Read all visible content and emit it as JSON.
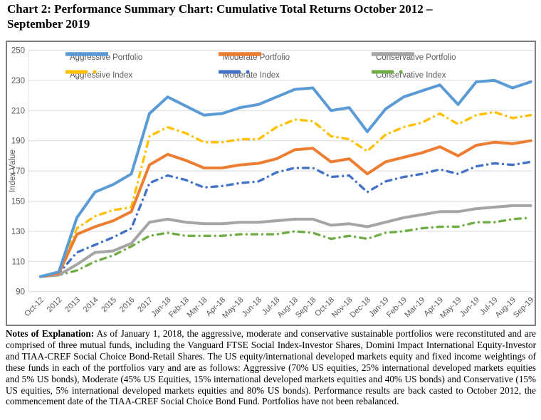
{
  "title": {
    "line1": "Chart 2:  Performance Summary Chart:  Cumulative Total Returns October 2012 –",
    "line2": "September 2019"
  },
  "chart_data": {
    "type": "line",
    "ylabel": "Index Value",
    "ylim": [
      90,
      250
    ],
    "ytick_step": 20,
    "yticks": [
      90,
      110,
      130,
      150,
      170,
      190,
      210,
      230,
      250
    ],
    "grid": "horizontal",
    "legend_position": "top-inside, two rows of three",
    "categories": [
      "Oct-12",
      "2012",
      "2013",
      "2014",
      "2015",
      "2016",
      "2017",
      "Jan-18",
      "Feb-18",
      "Mar-18",
      "Apr-18",
      "May-18",
      "Jun-18",
      "Jul-18",
      "Aug-18",
      "Sep-18",
      "Oct-18",
      "Nov-18",
      "Dec-18",
      "Jan-19",
      "Feb-19",
      "Mar-19",
      "Apr-19",
      "May-19",
      "Jun-19",
      "Jul-19",
      "Aug-19",
      "Sep-19"
    ],
    "series": [
      {
        "name": "Aggressive Portfolio",
        "color": "#5B9BD5",
        "line_style": "solid",
        "values": [
          100,
          103,
          139,
          156,
          161,
          168,
          208,
          219,
          213,
          207,
          208,
          212,
          214,
          219,
          224,
          225,
          210,
          212,
          196,
          211,
          219,
          223,
          227,
          214,
          229,
          230,
          225,
          229
        ]
      },
      {
        "name": "Moderate Portfolio",
        "color": "#ED7D31",
        "line_style": "solid",
        "values": [
          100,
          102,
          128,
          133,
          137,
          143,
          174,
          181,
          177,
          172,
          172,
          174,
          175,
          178,
          184,
          185,
          176,
          178,
          168,
          176,
          179,
          182,
          186,
          180,
          187,
          189,
          188,
          190
        ]
      },
      {
        "name": "Conservative Portfolio",
        "color": "#A5A5A5",
        "line_style": "solid",
        "values": [
          100,
          101,
          108,
          116,
          117,
          122,
          136,
          138,
          136,
          135,
          135,
          136,
          136,
          137,
          138,
          138,
          134,
          135,
          133,
          136,
          139,
          141,
          143,
          143,
          145,
          146,
          147,
          147
        ]
      },
      {
        "name": "Aggressive Index",
        "color": "#FFC000",
        "line_style": "dash-dot",
        "values": [
          100,
          102,
          132,
          140,
          144,
          146,
          193,
          199,
          195,
          189,
          189,
          191,
          191,
          199,
          204,
          203,
          193,
          191,
          183,
          194,
          199,
          202,
          208,
          201,
          207,
          209,
          205,
          207
        ]
      },
      {
        "name": "Moderate Index",
        "color": "#4472C4",
        "line_style": "dash-dot",
        "values": [
          100,
          102,
          116,
          121,
          126,
          132,
          162,
          167,
          164,
          159,
          160,
          162,
          163,
          169,
          172,
          172,
          166,
          167,
          156,
          163,
          166,
          168,
          171,
          168,
          173,
          175,
          174,
          176
        ]
      },
      {
        "name": "Conservative Index",
        "color": "#70AD47",
        "line_style": "dash-dot",
        "values": [
          100,
          101,
          104,
          110,
          114,
          120,
          127,
          129,
          127,
          127,
          127,
          128,
          128,
          128,
          130,
          129,
          125,
          127,
          125,
          129,
          130,
          132,
          133,
          133,
          136,
          136,
          138,
          139
        ]
      }
    ],
    "colors": {
      "gridline": "#D9D9D9",
      "axis_text": "#595959",
      "chart_border": "#7F7F7F"
    }
  },
  "notes": {
    "lead": "Notes of Explanation:",
    "body": "  As of January 1, 2018, the aggressive, moderate and conservative sustainable portfolios were reconstituted and are comprised of three mutual funds, including the Vanguard FTSE Social Index-Investor Shares, Domini Impact International Equity-Investor and TIAA-CREF Social Choice Bond-Retail Shares. The US equity/international developed markets equity and fixed income weightings of these funds in each of the portfolios vary and are as follows:  Aggressive (70% US equities, 25% international developed markets equities and 5% US bonds), Moderate (45% US Equities, 15% international developed markets equities and 40% US bonds) and Conservative (15% US equities, 5% international developed markets equities and 80% US bonds).  Performance results are back casted to October 2012, the commencement date of the TIAA-CREF Social Choice Bond Fund.  Portfolios have not been rebalanced."
  }
}
